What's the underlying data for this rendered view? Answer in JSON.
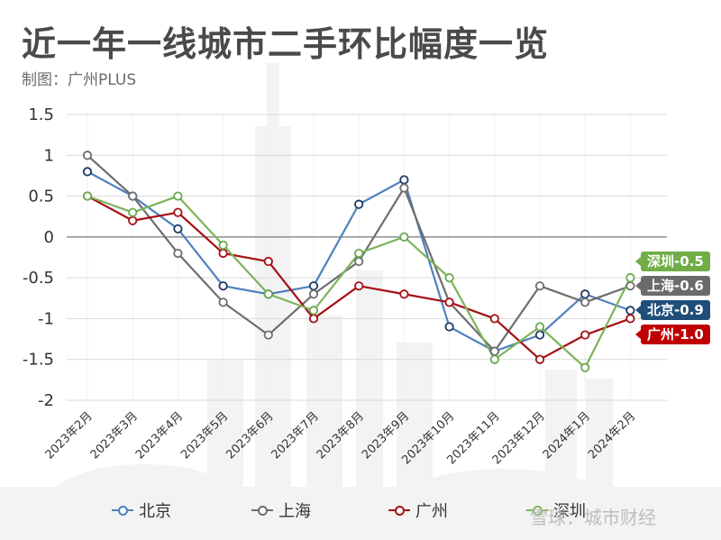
{
  "header": {
    "title": "近一年一线城市二手环比幅度一览",
    "subtitle": "制图：广州PLUS"
  },
  "watermark": "雪球：城市财经",
  "legend": [
    {
      "name": "北京",
      "color": "#4f81bd"
    },
    {
      "name": "上海",
      "color": "#6e6e6e"
    },
    {
      "name": "广州",
      "color": "#a50f15"
    },
    {
      "name": "深圳",
      "color": "#7cb45a"
    }
  ],
  "end_labels": [
    {
      "text": "深圳-0.5",
      "color": "#70ad47"
    },
    {
      "text": "上海-0.6",
      "color": "#6b6b6b"
    },
    {
      "text": "北京-0.9",
      "color": "#1f4e79"
    },
    {
      "text": "广州-1.0",
      "color": "#c00000"
    }
  ],
  "chart_data": {
    "type": "line",
    "title": "近一年一线城市二手环比幅度一览",
    "subtitle": "制图：广州PLUS",
    "xlabel": "",
    "ylabel": "",
    "ylim": [
      -2,
      1.5
    ],
    "yticks": [
      1.5,
      1,
      0.5,
      0,
      -0.5,
      -1,
      -1.5,
      -2
    ],
    "grid": true,
    "legend_position": "bottom",
    "categories": [
      "2023年2月",
      "2023年3月",
      "2023年4月",
      "2023年5月",
      "2023年6月",
      "2023年7月",
      "2023年8月",
      "2023年9月",
      "2023年10月",
      "2023年11月",
      "2023年12月",
      "2024年1月",
      "2024年2月"
    ],
    "series": [
      {
        "name": "北京",
        "color": "#4f81bd",
        "marker_edge": "#1f3864",
        "values": [
          0.8,
          0.5,
          0.1,
          -0.6,
          -0.7,
          -0.6,
          0.4,
          0.7,
          -1.1,
          -1.4,
          -1.2,
          -0.7,
          -0.9
        ]
      },
      {
        "name": "上海",
        "color": "#6e6e6e",
        "marker_edge": "#6e6e6e",
        "values": [
          1.0,
          0.5,
          -0.2,
          -0.8,
          -1.2,
          -0.7,
          -0.3,
          0.6,
          -0.8,
          -1.4,
          -0.6,
          -0.8,
          -0.6
        ]
      },
      {
        "name": "广州",
        "color": "#a50f15",
        "marker_edge": "#a50f15",
        "values": [
          0.5,
          0.2,
          0.3,
          -0.2,
          -0.3,
          -1.0,
          -0.6,
          -0.7,
          -0.8,
          -1.0,
          -1.5,
          -1.2,
          -1.0
        ]
      },
      {
        "name": "深圳",
        "color": "#7cb45a",
        "marker_edge": "#6aa84f",
        "values": [
          0.5,
          0.3,
          0.5,
          -0.1,
          -0.7,
          -0.9,
          -0.2,
          0.0,
          -0.5,
          -1.5,
          -1.1,
          -1.6,
          -0.5
        ]
      }
    ],
    "annotations": [
      "深圳-0.5",
      "上海-0.6",
      "北京-0.9",
      "广州-1.0"
    ]
  }
}
